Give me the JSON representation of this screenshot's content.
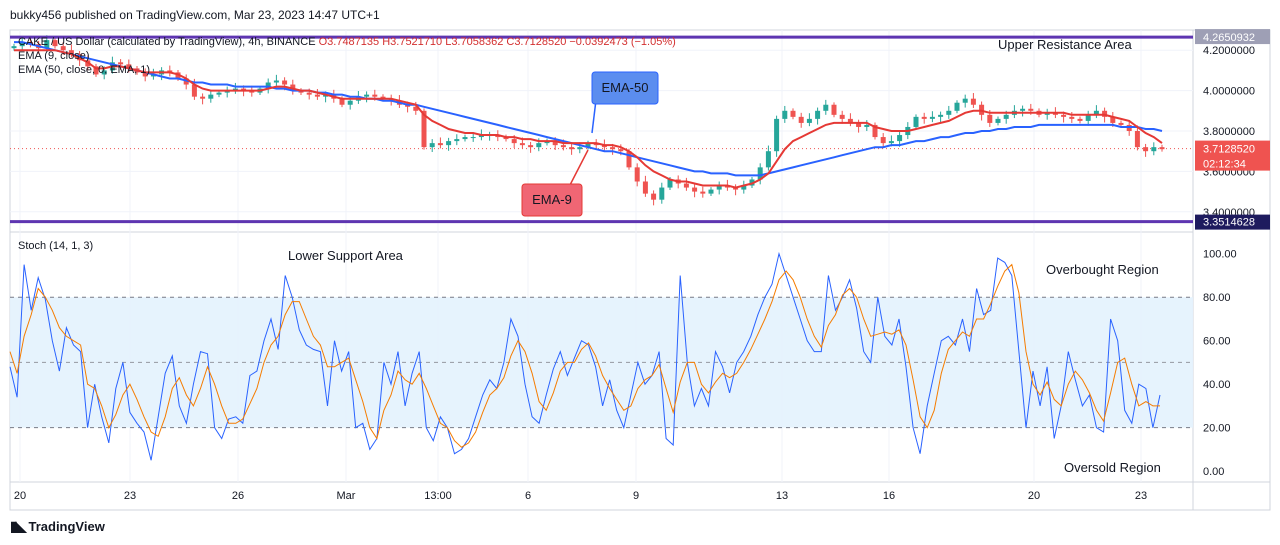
{
  "header": {
    "published": "bukky456 published on TradingView.com, Mar 23, 2023 14:47 UTC+1"
  },
  "legend": {
    "symbol": "CAKE / US Dollar (calculated by TradingView), 4h, BINANCE",
    "ohlc": "O3.7487135 H3.7521710 L3.7058362 C3.7128520 −0.0392473 (−1.05%)",
    "ema9": "EMA (9, close)",
    "ema50": "EMA (50, close, 0, EMA, 1)",
    "stoch": "Stoch (14, 1, 3)"
  },
  "annotations": {
    "upper": "Upper Resistance Area",
    "lower": "Lower Support Area",
    "overbought": "Overbought Region",
    "oversold": "Oversold Region",
    "ema50_callout": "EMA-50",
    "ema9_callout": "EMA-9"
  },
  "footer": {
    "brand": "TradingView"
  },
  "colors": {
    "candle_up": "#26a69a",
    "candle_down": "#ef5350",
    "ema9": "#e53935",
    "ema50": "#2962ff",
    "level_line": "#5e35b1",
    "stoch_k": "#2962ff",
    "stoch_d": "#f57c00",
    "stoch_band": "#e3f2fd",
    "price_label": "#ef5350",
    "level_label": "#1e1b5e"
  },
  "chart_data": [
    {
      "type": "candlestick",
      "y_unit": "USD",
      "ylim": [
        3.3,
        4.3
      ],
      "y_ticks": [
        3.4,
        3.6,
        3.8,
        4.0,
        4.2
      ],
      "y_tick_labels": [
        "3.4000000",
        "3.6000000",
        "3.8000000",
        "4.0000000",
        "4.2000000"
      ],
      "x_tick_labels": [
        "20",
        "23",
        "26",
        "Mar",
        "13:00",
        "6",
        "9",
        "13",
        "16",
        "20",
        "23"
      ],
      "last_price": "3.7128520",
      "countdown": "02:12:34",
      "upper_level": 4.265,
      "upper_level_label": "4.2650932",
      "lower_level": 3.3514628,
      "lower_level_label": "3.3514628",
      "close_path": [
        4.22,
        4.24,
        4.23,
        4.21,
        4.25,
        4.22,
        4.2,
        4.18,
        4.15,
        4.12,
        4.08,
        4.1,
        4.14,
        4.13,
        4.11,
        4.09,
        4.07,
        4.08,
        4.1,
        4.09,
        4.06,
        4.03,
        3.97,
        3.96,
        3.98,
        3.99,
        4.0,
        4.01,
        4.0,
        3.99,
        4.01,
        4.04,
        4.05,
        4.03,
        4.0,
        3.99,
        3.98,
        3.97,
        3.98,
        3.96,
        3.93,
        3.95,
        3.97,
        3.98,
        3.97,
        3.96,
        3.95,
        3.93,
        3.92,
        3.9,
        3.72,
        3.74,
        3.73,
        3.75,
        3.76,
        3.77,
        3.77,
        3.78,
        3.78,
        3.77,
        3.76,
        3.74,
        3.73,
        3.72,
        3.74,
        3.75,
        3.73,
        3.72,
        3.71,
        3.72,
        3.74,
        3.73,
        3.72,
        3.71,
        3.7,
        3.62,
        3.55,
        3.49,
        3.46,
        3.52,
        3.56,
        3.54,
        3.52,
        3.5,
        3.49,
        3.51,
        3.53,
        3.52,
        3.51,
        3.53,
        3.56,
        3.62,
        3.7,
        3.86,
        3.9,
        3.87,
        3.84,
        3.86,
        3.9,
        3.93,
        3.88,
        3.86,
        3.84,
        3.82,
        3.83,
        3.77,
        3.74,
        3.75,
        3.78,
        3.82,
        3.87,
        3.86,
        3.87,
        3.88,
        3.9,
        3.94,
        3.96,
        3.93,
        3.88,
        3.84,
        3.86,
        3.88,
        3.9,
        3.91,
        3.9,
        3.88,
        3.89,
        3.88,
        3.87,
        3.86,
        3.85,
        3.88,
        3.9,
        3.87,
        3.84,
        3.83,
        3.8,
        3.72,
        3.7,
        3.72,
        3.71
      ],
      "ema9_path": [
        4.2,
        4.2,
        4.2,
        4.2,
        4.2,
        4.2,
        4.19,
        4.18,
        4.16,
        4.14,
        4.11,
        4.11,
        4.12,
        4.12,
        4.11,
        4.1,
        4.09,
        4.09,
        4.09,
        4.09,
        4.08,
        4.06,
        4.03,
        4.01,
        4.0,
        4.0,
        4.0,
        4.0,
        4.0,
        4.0,
        4.0,
        4.01,
        4.02,
        4.02,
        4.01,
        4.0,
        4.0,
        3.99,
        3.98,
        3.97,
        3.96,
        3.96,
        3.96,
        3.96,
        3.96,
        3.96,
        3.96,
        3.95,
        3.94,
        3.93,
        3.88,
        3.85,
        3.83,
        3.81,
        3.8,
        3.79,
        3.79,
        3.78,
        3.78,
        3.78,
        3.77,
        3.77,
        3.76,
        3.76,
        3.75,
        3.75,
        3.75,
        3.74,
        3.74,
        3.74,
        3.74,
        3.74,
        3.73,
        3.73,
        3.72,
        3.7,
        3.67,
        3.63,
        3.6,
        3.58,
        3.56,
        3.55,
        3.55,
        3.54,
        3.53,
        3.53,
        3.53,
        3.53,
        3.52,
        3.53,
        3.54,
        3.56,
        3.59,
        3.65,
        3.71,
        3.75,
        3.77,
        3.79,
        3.81,
        3.83,
        3.84,
        3.84,
        3.84,
        3.84,
        3.84,
        3.82,
        3.81,
        3.8,
        3.8,
        3.8,
        3.81,
        3.82,
        3.83,
        3.84,
        3.85,
        3.87,
        3.89,
        3.9,
        3.9,
        3.89,
        3.89,
        3.89,
        3.89,
        3.89,
        3.89,
        3.89,
        3.89,
        3.89,
        3.89,
        3.88,
        3.88,
        3.88,
        3.88,
        3.88,
        3.87,
        3.86,
        3.85,
        3.82,
        3.79,
        3.77,
        3.74
      ],
      "ema50_path": [
        4.24,
        4.24,
        4.23,
        4.22,
        4.21,
        4.2,
        4.19,
        4.18,
        4.17,
        4.16,
        4.15,
        4.14,
        4.13,
        4.12,
        4.11,
        4.1,
        4.09,
        4.08,
        4.07,
        4.06,
        4.06,
        4.05,
        4.04,
        4.04,
        4.03,
        4.03,
        4.03,
        4.02,
        4.02,
        4.02,
        4.02,
        4.02,
        4.01,
        4.01,
        4.0,
        4.0,
        4.0,
        3.99,
        3.99,
        3.98,
        3.98,
        3.97,
        3.97,
        3.96,
        3.96,
        3.95,
        3.95,
        3.94,
        3.93,
        3.93,
        3.92,
        3.91,
        3.9,
        3.89,
        3.88,
        3.87,
        3.86,
        3.85,
        3.84,
        3.83,
        3.82,
        3.81,
        3.8,
        3.79,
        3.78,
        3.77,
        3.76,
        3.75,
        3.74,
        3.73,
        3.72,
        3.71,
        3.7,
        3.7,
        3.69,
        3.68,
        3.67,
        3.66,
        3.65,
        3.64,
        3.63,
        3.62,
        3.61,
        3.6,
        3.6,
        3.59,
        3.59,
        3.59,
        3.58,
        3.58,
        3.58,
        3.58,
        3.59,
        3.6,
        3.61,
        3.62,
        3.63,
        3.64,
        3.65,
        3.66,
        3.67,
        3.68,
        3.69,
        3.7,
        3.71,
        3.72,
        3.72,
        3.73,
        3.73,
        3.74,
        3.75,
        3.75,
        3.76,
        3.77,
        3.77,
        3.78,
        3.79,
        3.79,
        3.8,
        3.8,
        3.81,
        3.81,
        3.82,
        3.82,
        3.82,
        3.83,
        3.83,
        3.83,
        3.83,
        3.83,
        3.83,
        3.83,
        3.83,
        3.83,
        3.83,
        3.82,
        3.82,
        3.82,
        3.81,
        3.81,
        3.8
      ]
    },
    {
      "type": "line",
      "ylim": [
        -5,
        110
      ],
      "y_ticks": [
        0,
        20,
        40,
        60,
        80,
        100
      ],
      "y_tick_labels": [
        "0.00",
        "20.00",
        "40.00",
        "60.00",
        "80.00",
        "100.00"
      ],
      "band": [
        20,
        80
      ],
      "midline": 50,
      "series": [
        {
          "values": [
            48,
            34,
            95,
            74,
            89,
            79,
            60,
            46,
            66,
            58,
            55,
            20,
            40,
            25,
            13,
            38,
            50,
            27,
            22,
            18,
            5,
            25,
            45,
            53,
            30,
            22,
            40,
            55,
            54,
            20,
            15,
            24,
            25,
            22,
            44,
            46,
            60,
            70,
            56,
            90,
            80,
            65,
            58,
            56,
            55,
            30,
            60,
            46,
            55,
            20,
            22,
            10,
            15,
            50,
            40,
            55,
            30,
            45,
            55,
            20,
            14,
            25,
            20,
            8,
            10,
            15,
            25,
            35,
            42,
            38,
            50,
            70,
            62,
            40,
            25,
            22,
            35,
            47,
            55,
            44,
            52,
            60,
            58,
            48,
            30,
            42,
            28,
            20,
            35,
            50,
            40,
            44,
            55,
            15,
            12,
            90,
            50,
            30,
            38,
            30,
            55,
            48,
            36,
            50,
            55,
            62,
            72,
            80,
            86,
            100,
            90,
            80,
            70,
            60,
            55,
            55,
            90,
            74,
            80,
            88,
            75,
            55,
            50,
            80,
            62,
            58,
            70,
            48,
            20,
            8,
            30,
            45,
            60,
            62,
            58,
            70,
            55,
            84,
            72,
            74,
            98,
            96,
            90,
            55,
            20,
            46,
            30,
            48,
            15,
            30,
            55,
            42,
            30,
            35,
            20,
            18,
            70,
            60,
            28,
            22,
            40,
            38,
            20,
            35
          ]
        },
        {
          "values": [
            55,
            45,
            62,
            72,
            84,
            80,
            74,
            66,
            62,
            60,
            58,
            40,
            38,
            30,
            20,
            26,
            35,
            40,
            33,
            25,
            18,
            16,
            25,
            38,
            43,
            35,
            30,
            38,
            48,
            40,
            30,
            22,
            22,
            24,
            31,
            38,
            50,
            58,
            62,
            72,
            78,
            78,
            70,
            62,
            58,
            48,
            48,
            50,
            52,
            42,
            32,
            20,
            15,
            28,
            35,
            46,
            42,
            40,
            45,
            38,
            30,
            22,
            20,
            14,
            11,
            13,
            18,
            27,
            35,
            38,
            43,
            53,
            60,
            55,
            45,
            32,
            28,
            36,
            46,
            50,
            50,
            56,
            59,
            53,
            44,
            38,
            33,
            28,
            30,
            38,
            42,
            44,
            49,
            38,
            27,
            41,
            50,
            50,
            40,
            36,
            41,
            45,
            43,
            45,
            50,
            56,
            63,
            70,
            78,
            88,
            92,
            88,
            80,
            70,
            62,
            57,
            67,
            72,
            81,
            84,
            80,
            70,
            62,
            63,
            64,
            63,
            65,
            58,
            42,
            25,
            20,
            28,
            45,
            56,
            60,
            64,
            62,
            70,
            70,
            77,
            85,
            92,
            95,
            82,
            55,
            40,
            35,
            41,
            33,
            30,
            40,
            46,
            42,
            36,
            28,
            23,
            36,
            50,
            52,
            40,
            30,
            32,
            30,
            30
          ]
        }
      ]
    }
  ]
}
